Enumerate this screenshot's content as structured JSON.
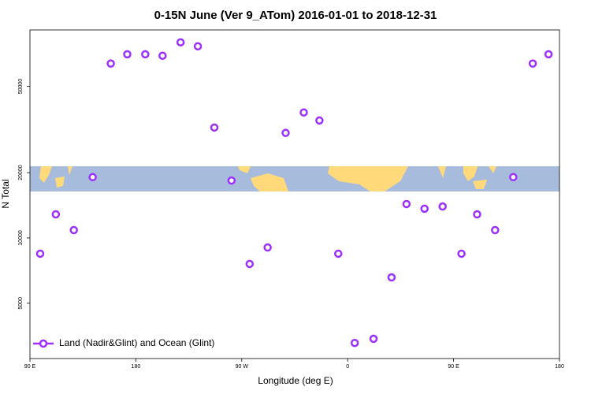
{
  "chart_data": {
    "type": "scatter",
    "title": "0-15N June (Ver 9_ATom)   2016-01-01 to 2018-12-31",
    "xlabel": "Longitude (deg E)",
    "ylabel": "N Total",
    "log_y": true,
    "legend_position": "bottom left",
    "xlim": [
      90,
      540
    ],
    "xticks": [
      {
        "value": 90,
        "label": "90 E"
      },
      180,
      {
        "value": 270,
        "label": "90 W"
      },
      {
        "value": 360,
        "label": "0"
      },
      {
        "value": 450,
        "label": "90 E"
      },
      {
        "value": 540,
        "label": "180"
      }
    ],
    "ylim": [
      2780,
      91000
    ],
    "yticks": [
      5000,
      10000,
      20000,
      50000
    ],
    "series": [
      {
        "name": "Land (Nadir&Glint) and Ocean (Glint)",
        "color": "#9b30ff",
        "x": [
          98.7,
          112,
          127.3,
          143.3,
          158.7,
          172.7,
          188,
          202.7,
          218,
          232.7,
          246.7,
          261.3,
          276.7,
          292,
          307.3,
          322.7,
          336,
          352,
          366,
          382,
          397.3,
          410,
          425.3,
          440.7,
          456.7,
          470,
          485.3,
          500.7,
          517.3,
          530.7
        ],
        "values": [
          8460,
          12850,
          10870,
          19070,
          63700,
          70300,
          70300,
          69200,
          79800,
          76500,
          32300,
          18400,
          7590,
          9040,
          30500,
          37900,
          34800,
          8460,
          3280,
          3430,
          6580,
          14330,
          13640,
          13970,
          8460,
          12850,
          10870,
          19070,
          63700,
          70300
        ]
      }
    ]
  }
}
